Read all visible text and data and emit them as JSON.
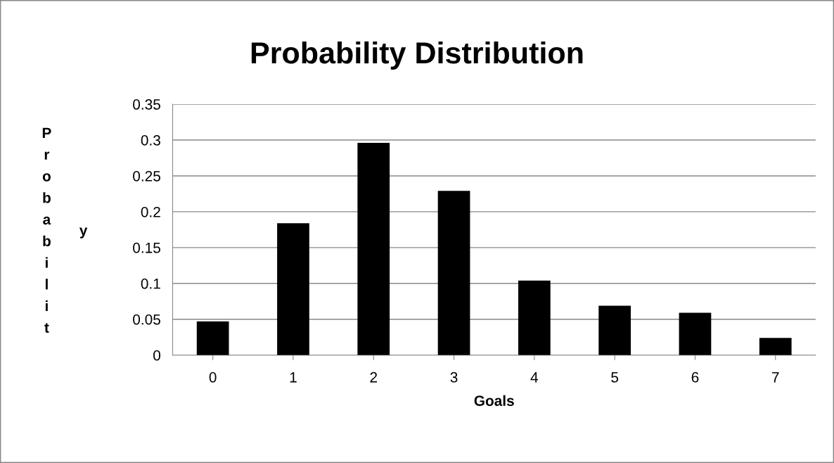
{
  "chart_data": {
    "type": "bar",
    "title": "Probability Distribution",
    "xlabel": "Goals",
    "ylabel": "Probability",
    "categories": [
      "0",
      "1",
      "2",
      "3",
      "4",
      "5",
      "6",
      "7"
    ],
    "values": [
      0.047,
      0.184,
      0.296,
      0.229,
      0.104,
      0.069,
      0.059,
      0.024
    ],
    "color": "#000000",
    "ylim": [
      0,
      0.35
    ],
    "yticks": [
      0,
      0.05,
      0.1,
      0.15,
      0.2,
      0.25,
      0.3,
      0.35
    ],
    "grid": "y",
    "legend": false
  }
}
